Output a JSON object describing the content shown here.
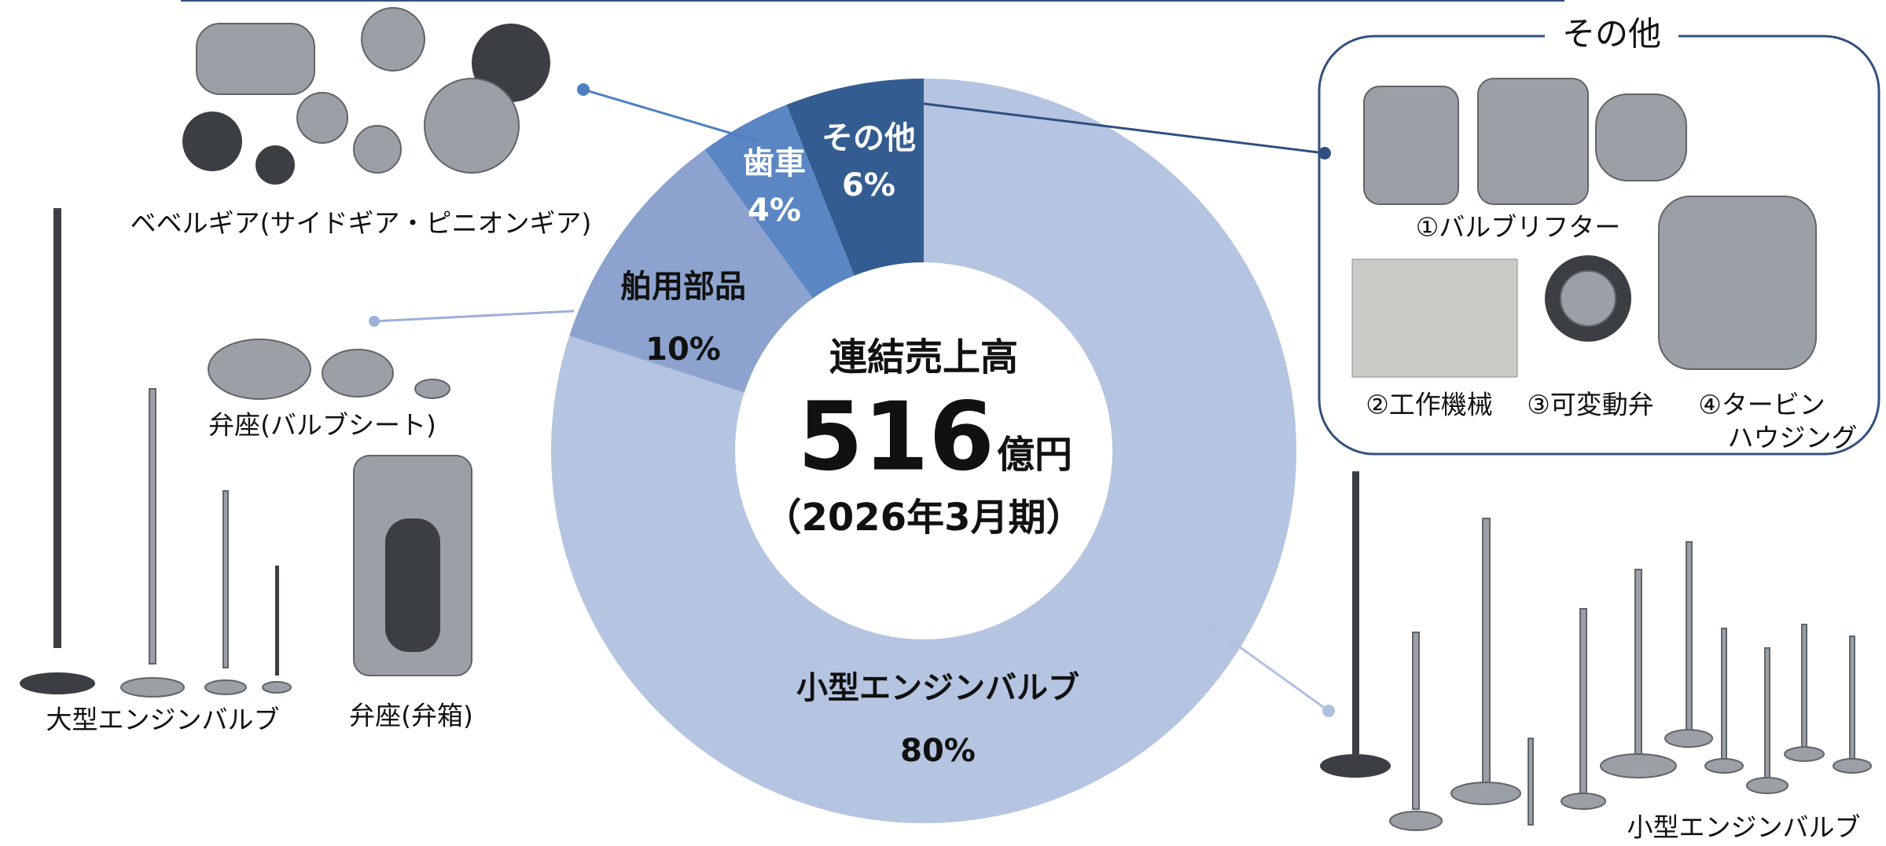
{
  "chart_data": {
    "type": "pie",
    "donut": true,
    "categories": [
      "小型エンジンバルブ",
      "舶用部品",
      "歯車",
      "その他"
    ],
    "values": [
      80,
      10,
      4,
      6
    ],
    "value_labels": [
      "80%",
      "10%",
      "4%",
      "6%"
    ],
    "colors": [
      "#b5c4e0",
      "#8da3cf",
      "#5b86c4",
      "#335d91"
    ],
    "center": {
      "title": "連結売上高",
      "value": 516,
      "unit": "億円",
      "period": "（2026年3月期）"
    }
  },
  "products": {
    "bevel_gear": "ベベルギア(サイドギア・ピニオンギア)",
    "valve_seat": "弁座(バルブシート)",
    "large_valve": "大型エンジンバルブ",
    "valve_box": "弁座(弁箱)",
    "small_valve": "小型エンジンバルブ",
    "other_box": {
      "title": "その他",
      "items": [
        "①バルブリフター",
        "②工作機械",
        "③可変動弁",
        [
          "④タービン",
          "ハウジング"
        ]
      ]
    }
  }
}
